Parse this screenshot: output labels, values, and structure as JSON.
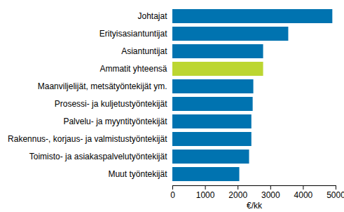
{
  "chart_data": {
    "type": "bar",
    "orientation": "horizontal",
    "categories": [
      "Johtajat",
      "Erityisasiantuntijat",
      "Asiantuntijat",
      "Ammatit yhteensä",
      "Maanviljelijät, metsätyöntekijät ym.",
      "Prosessi- ja kuljetustyöntekijät",
      "Palvelu- ja myyntityöntekijät",
      "Rakennus-, korjaus- ja valmistustyöntekijät",
      "Toimisto- ja asiakaspalvelutyöntekijät",
      "Muut työntekijät"
    ],
    "values": [
      4900,
      3550,
      2780,
      2780,
      2480,
      2460,
      2420,
      2420,
      2350,
      2050
    ],
    "colors": [
      "#0073b0",
      "#0073b0",
      "#0073b0",
      "#bcd631",
      "#0073b0",
      "#0073b0",
      "#0073b0",
      "#0073b0",
      "#0073b0",
      "#0073b0"
    ],
    "xlim": [
      0,
      5000
    ],
    "xticks": [
      0,
      1000,
      2000,
      3000,
      4000,
      5000
    ],
    "x_label": "€/kk",
    "grid": false
  }
}
